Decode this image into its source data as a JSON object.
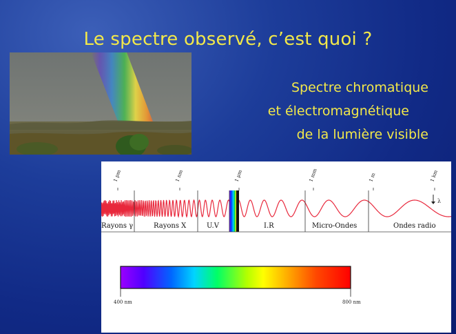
{
  "slide": {
    "title": "Le spectre observé, c’est quoi ?",
    "subtitle_lines": [
      "Spectre chromatique",
      "et électromagnétique",
      "de la lumière visible"
    ],
    "colors": {
      "title": "#f2e84a",
      "background": "#1d3d9a"
    }
  },
  "spectrum_figure": {
    "scale_labels": [
      "1 pm",
      "1 nm",
      "1 µm",
      "1 mm",
      "1 m",
      "1 km"
    ],
    "lambda_symbol": "λ",
    "regions": [
      "Rayons γ",
      "Rayons X",
      "U.V",
      "I.R",
      "Micro-Ondes",
      "Ondes radio"
    ],
    "visible_bar": {
      "start_label": "400 nm",
      "end_label": "800 nm"
    }
  }
}
